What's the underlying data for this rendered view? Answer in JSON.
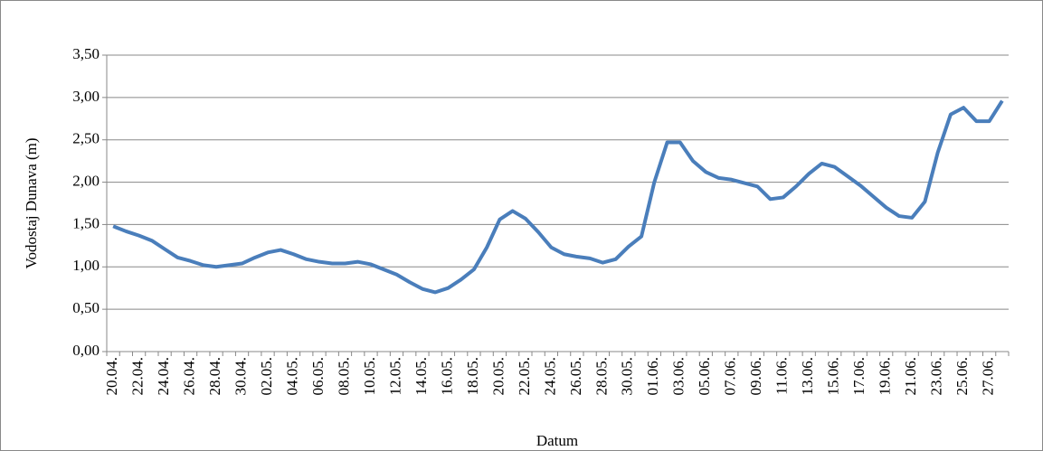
{
  "chart_data": {
    "type": "line",
    "xlabel": "Datum",
    "ylabel": "Vodostaj Dunava (m)",
    "categories": [
      "20.04.",
      null,
      "22.04.",
      null,
      "24.04.",
      null,
      "26.04.",
      null,
      "28.04.",
      null,
      "30.04.",
      null,
      "02.05.",
      null,
      "04.05.",
      null,
      "06.05.",
      null,
      "08.05.",
      null,
      "10.05.",
      null,
      "12.05.",
      null,
      "14.05.",
      null,
      "16.05.",
      null,
      "18.05.",
      null,
      "20.05.",
      null,
      "22.05.",
      null,
      "24.05.",
      null,
      "26.05.",
      null,
      "28.05.",
      null,
      "30.05.",
      null,
      "01.06.",
      null,
      "03.06.",
      null,
      "05.06.",
      null,
      "07.06.",
      null,
      "09.06.",
      null,
      "11.06.",
      null,
      "13.06.",
      null,
      "15.06.",
      null,
      "17.06.",
      null,
      "19.06.",
      null,
      "21.06.",
      null,
      "23.06.",
      null,
      "25.06.",
      null,
      "27.06.",
      null
    ],
    "series": [
      {
        "color": "#4a7ebb",
        "values": [
          1.48,
          1.42,
          1.37,
          1.31,
          1.21,
          1.11,
          1.07,
          1.02,
          1.0,
          1.02,
          1.04,
          1.11,
          1.17,
          1.2,
          1.15,
          1.09,
          1.06,
          1.04,
          1.04,
          1.06,
          1.03,
          0.97,
          0.91,
          0.82,
          0.74,
          0.7,
          0.75,
          0.85,
          0.97,
          1.23,
          1.56,
          1.66,
          1.57,
          1.41,
          1.23,
          1.15,
          1.12,
          1.1,
          1.05,
          1.09,
          1.24,
          1.36,
          2.0,
          2.47,
          2.47,
          2.25,
          2.12,
          2.05,
          2.03,
          1.99,
          1.95,
          1.8,
          1.82,
          1.95,
          2.1,
          2.22,
          2.18,
          2.07,
          1.96,
          1.83,
          1.7,
          1.6,
          1.58,
          1.77,
          2.35,
          2.8,
          2.88,
          2.72,
          2.72,
          2.96
        ]
      }
    ],
    "ylim": [
      0,
      3.5
    ],
    "yticks": [
      {
        "value": 0,
        "label": "0,00"
      },
      {
        "value": 0.5,
        "label": "0,50"
      },
      {
        "value": 1,
        "label": "1,00"
      },
      {
        "value": 1.5,
        "label": "1,50"
      },
      {
        "value": 2,
        "label": "2,00"
      },
      {
        "value": 2.5,
        "label": "2,50"
      },
      {
        "value": 3,
        "label": "3,00"
      },
      {
        "value": 3.5,
        "label": "3,50"
      }
    ],
    "grid": true
  }
}
